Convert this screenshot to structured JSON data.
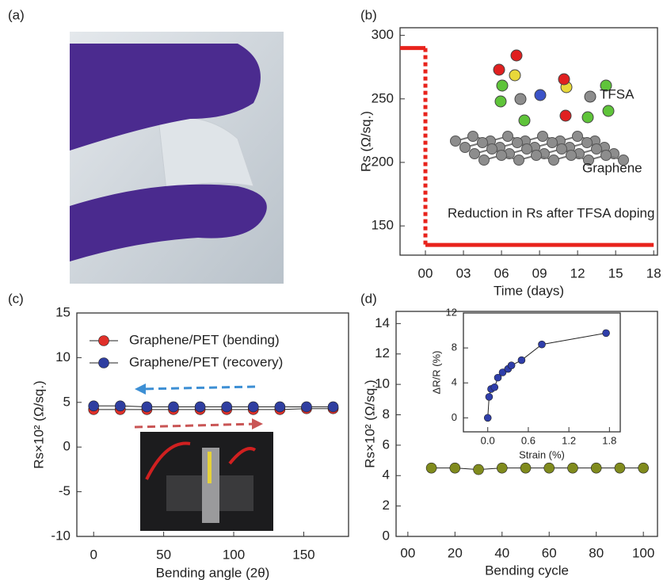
{
  "panel_labels": [
    "(a)",
    "(b)",
    "(c)",
    "(d)"
  ],
  "chart_data": [
    {
      "type": "line",
      "xlabel": "Time (days)",
      "ylabel": "Rs (Ω/sq.)",
      "x": [
        -2,
        0,
        0,
        18
      ],
      "values": [
        290,
        290,
        135,
        135
      ],
      "color": "#e8231c",
      "markers": false,
      "xlim": [
        -2,
        18.3
      ],
      "ylim": [
        127,
        306
      ],
      "xticks": [
        {
          "value": 0,
          "label": "00"
        },
        {
          "value": 3,
          "label": "03"
        },
        {
          "value": 6,
          "label": "06"
        },
        {
          "value": 9,
          "label": "09"
        },
        12,
        15,
        18
      ],
      "yticks": [
        150,
        200,
        250,
        300
      ],
      "annotations": [
        "TFSA",
        "Graphene",
        "Reduction in Rs after TFSA doping"
      ]
    },
    {
      "type": "line",
      "xlabel": "Bending angle (2θ)",
      "ylabel": "Rs×10² (Ω/sq.)",
      "x": [
        0,
        19,
        38,
        57,
        76,
        95,
        114,
        133,
        152,
        171
      ],
      "markers": true,
      "legend": "upper-left",
      "series": [
        {
          "name": "Graphene/PET (bending)",
          "color": "#e0302a",
          "values": [
            4.2,
            4.2,
            4.2,
            4.2,
            4.2,
            4.2,
            4.2,
            4.2,
            4.3,
            4.3
          ]
        },
        {
          "name": "Graphene/PET (recovery)",
          "color": "#2f3ea0",
          "values": [
            4.6,
            4.6,
            4.5,
            4.5,
            4.5,
            4.5,
            4.5,
            4.5,
            4.5,
            4.5
          ]
        }
      ],
      "xlim": [
        -12,
        182
      ],
      "ylim": [
        -10,
        15
      ],
      "xticks": [
        0,
        50,
        100,
        150
      ],
      "yticks": [
        -10,
        -5,
        0,
        5,
        10,
        15
      ]
    },
    {
      "type": "line",
      "xlabel": "Bending cycle",
      "ylabel": "Rs×10² (Ω/sq.)",
      "x": [
        10,
        20,
        30,
        40,
        50,
        60,
        70,
        80,
        90,
        100
      ],
      "values": [
        4.5,
        4.5,
        4.4,
        4.5,
        4.5,
        4.5,
        4.5,
        4.5,
        4.5,
        4.5
      ],
      "color": "#808b1d",
      "markers": true,
      "xlim": [
        -5,
        106
      ],
      "ylim": [
        0,
        14.8
      ],
      "xticks": [
        {
          "value": 0,
          "label": "00"
        },
        20,
        40,
        60,
        80,
        100
      ],
      "yticks": [
        0,
        2,
        4,
        6,
        8,
        10,
        12,
        14
      ]
    },
    {
      "type": "line",
      "xlabel": "Strain (%)",
      "ylabel": "ΔR/R (%)",
      "x": [
        0,
        0.02,
        0.05,
        0.1,
        0.15,
        0.22,
        0.3,
        0.35,
        0.5,
        0.8,
        1.75
      ],
      "values": [
        0,
        2.4,
        3.3,
        3.5,
        4.6,
        5.2,
        5.6,
        6.0,
        6.6,
        8.4,
        9.7
      ],
      "color": "#2f3eaa",
      "markers": true,
      "xlim": [
        -0.36,
        1.96
      ],
      "ylim": [
        -1.6,
        12
      ],
      "xticks": [
        {
          "value": 0,
          "label": "0.0"
        },
        0.6,
        1.2,
        1.8
      ],
      "yticks": [
        0,
        4,
        8,
        12
      ]
    }
  ]
}
